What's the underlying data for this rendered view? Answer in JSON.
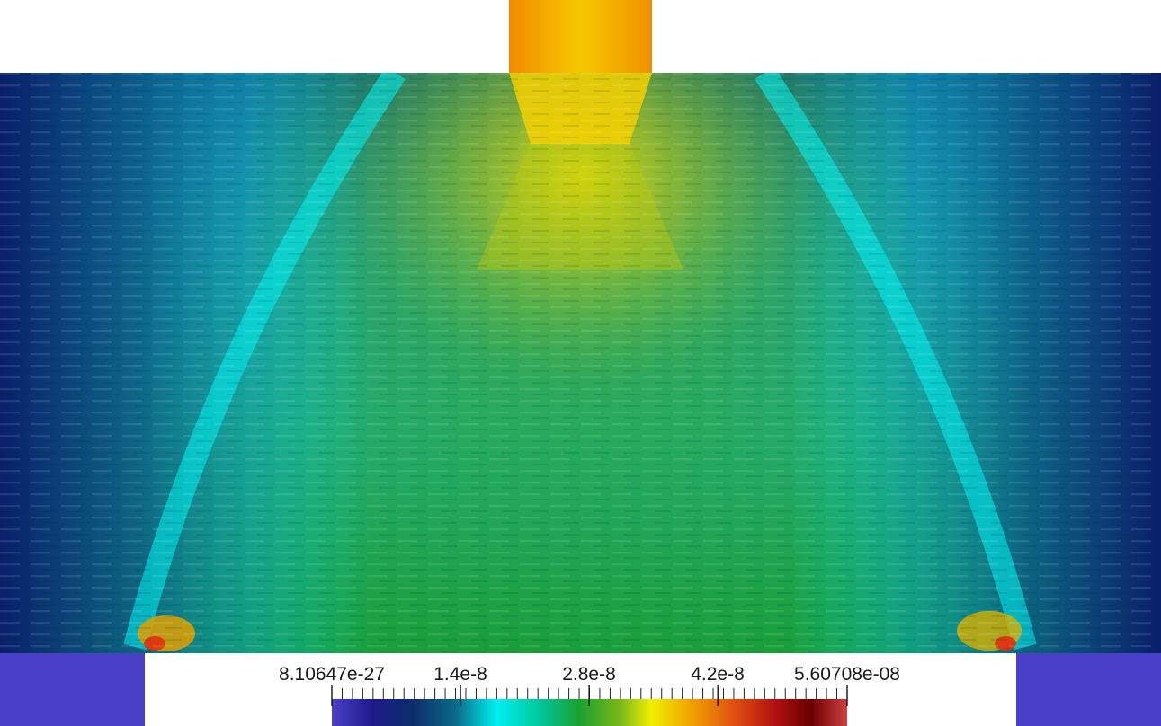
{
  "colorbar": {
    "tick_labels": [
      "8.10647e-27",
      "1.4e-8",
      "2.8e-8",
      "4.2e-8",
      "5.60708e-08"
    ],
    "tick_values": [
      8.10647e-27,
      1.4e-08,
      2.8e-08,
      4.2e-08,
      5.60708e-08
    ],
    "range": [
      8.10647e-27,
      5.60708e-08
    ],
    "colormap": [
      "#4a40c8",
      "#1e1a8a",
      "#0a2f6a",
      "#0a6a8a",
      "#00f0f0",
      "#00c8a0",
      "#1aa030",
      "#7ab81a",
      "#f0f000",
      "#f0a000",
      "#e05010",
      "#b01010",
      "#6a0000",
      "#d04040"
    ],
    "minor_tick_count": 50
  },
  "colors": {
    "background": "#ffffff",
    "low": "#4a40c8",
    "mid": "#1aa030",
    "high": "#d04040"
  }
}
